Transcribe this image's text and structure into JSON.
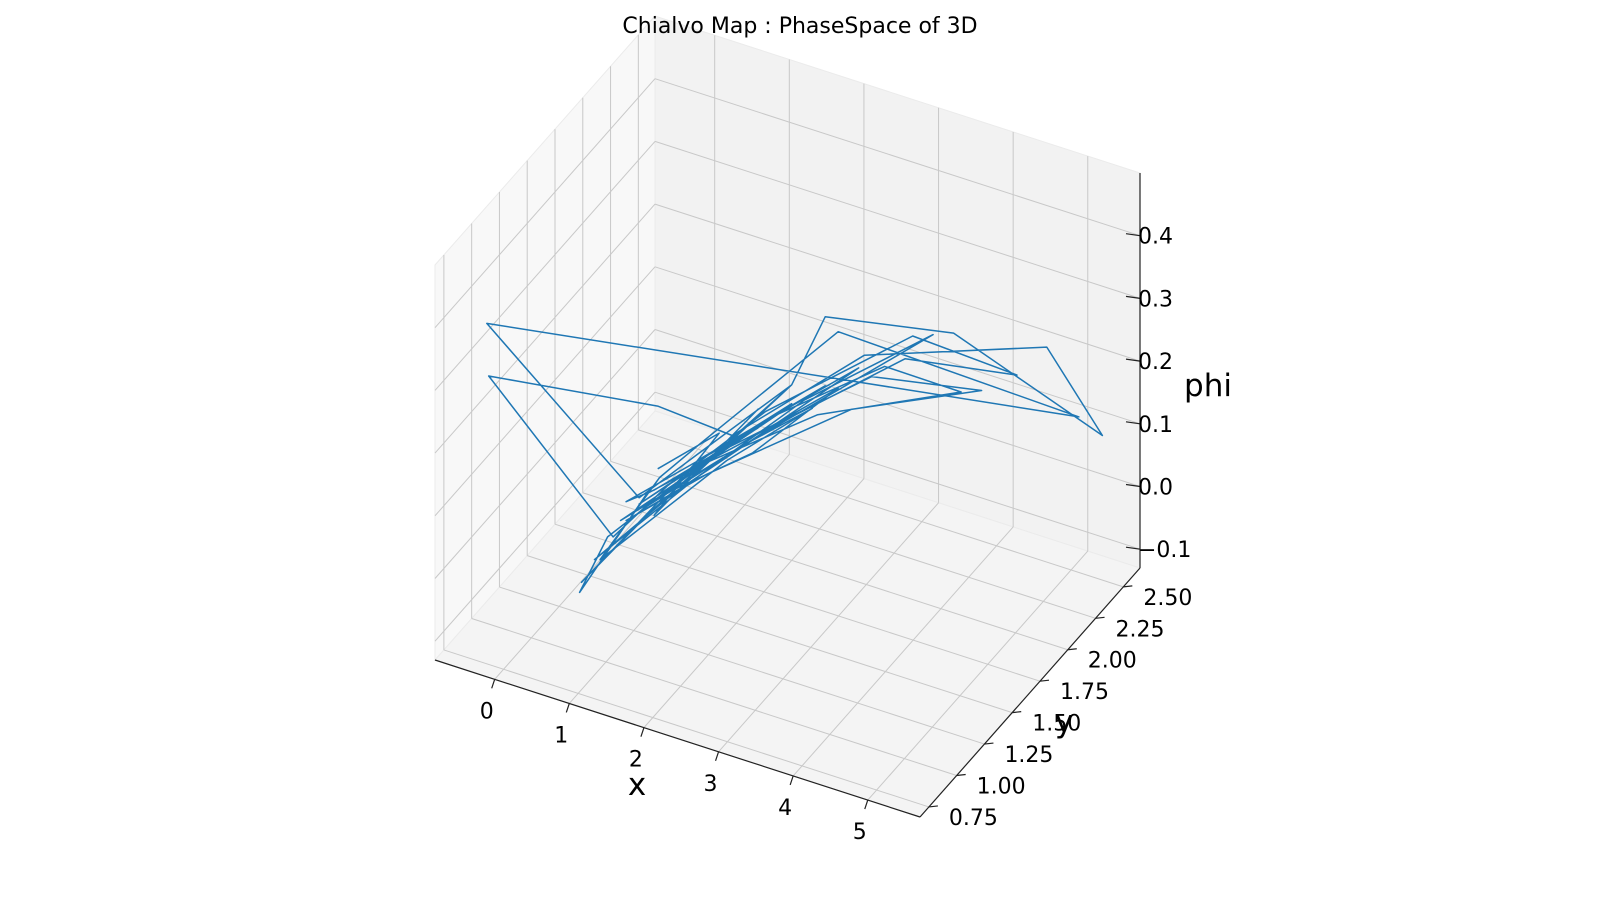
{
  "chart_data": {
    "type": "line",
    "projection": "3d",
    "title": "Chialvo Map : PhaseSpace of 3D",
    "xlabel": "x",
    "ylabel": "y",
    "zlabel": "phi",
    "xlim": [
      -0.8,
      5.7
    ],
    "ylim": [
      0.67,
      2.65
    ],
    "zlim": [
      -0.13,
      0.5
    ],
    "x_ticks": [
      0,
      1,
      2,
      3,
      4,
      5
    ],
    "y_ticks": [
      0.75,
      1.0,
      1.25,
      1.5,
      1.75,
      2.0,
      2.25,
      2.5
    ],
    "z_ticks": [
      -0.1,
      0.0,
      0.1,
      0.2,
      0.3,
      0.4
    ],
    "x_tick_labels": [
      "0",
      "1",
      "2",
      "3",
      "4",
      "5"
    ],
    "y_tick_labels": [
      "0.75",
      "1.00",
      "1.25",
      "1.50",
      "1.75",
      "2.00",
      "2.25",
      "2.50"
    ],
    "z_tick_labels": [
      "−0.1",
      "0.0",
      "0.1",
      "0.2",
      "0.3",
      "0.4"
    ],
    "grid": true,
    "color": "#1f77b4",
    "series": [
      {
        "points": [
          [
            0.8,
            1.6,
            0.05
          ],
          [
            1.4,
            1.75,
            0.1
          ],
          [
            0.9,
            1.5,
            0.0
          ],
          [
            1.7,
            1.9,
            0.12
          ],
          [
            1.1,
            1.6,
            0.03
          ],
          [
            2.0,
            2.0,
            0.15
          ],
          [
            0.95,
            1.45,
            0.02
          ],
          [
            0.3,
            1.25,
            -0.08
          ],
          [
            1.2,
            1.7,
            0.06
          ],
          [
            2.3,
            2.1,
            0.14
          ],
          [
            1.5,
            1.8,
            0.08
          ],
          [
            0.7,
            1.5,
            0.01
          ],
          [
            1.8,
            1.95,
            0.1
          ],
          [
            2.6,
            2.2,
            0.16
          ],
          [
            1.3,
            1.65,
            0.05
          ],
          [
            0.4,
            1.3,
            -0.05
          ],
          [
            1.0,
            1.55,
            0.02
          ],
          [
            2.1,
            2.05,
            0.12
          ],
          [
            3.3,
            2.4,
            0.2
          ],
          [
            1.6,
            1.85,
            0.07
          ],
          [
            0.6,
            1.4,
            0.0
          ],
          [
            1.9,
            1.95,
            0.11
          ],
          [
            2.8,
            2.3,
            0.15
          ],
          [
            3.6,
            2.45,
            0.11
          ],
          [
            2.2,
            2.1,
            0.09
          ],
          [
            1.2,
            1.7,
            0.05
          ],
          [
            0.5,
            1.35,
            -0.02
          ],
          [
            0.2,
            1.3,
            -0.11
          ],
          [
            0.8,
            1.5,
            0.03
          ],
          [
            1.6,
            1.8,
            0.08
          ],
          [
            2.4,
            2.15,
            0.13
          ],
          [
            1.7,
            1.85,
            0.06
          ],
          [
            0.9,
            1.55,
            0.02
          ],
          [
            1.4,
            1.75,
            0.07
          ],
          [
            2.7,
            2.25,
            0.14
          ],
          [
            3.8,
            2.5,
            0.11
          ],
          [
            2.5,
            2.2,
            0.09
          ],
          [
            1.3,
            1.7,
            0.04
          ],
          [
            0.6,
            1.45,
            -0.01
          ],
          [
            1.1,
            1.6,
            0.03
          ],
          [
            1.9,
            1.9,
            0.1
          ],
          [
            3.0,
            2.35,
            0.16
          ],
          [
            4.2,
            2.55,
            0.14
          ],
          [
            3.1,
            2.35,
            0.2
          ],
          [
            1.8,
            1.9,
            0.12
          ],
          [
            1.0,
            1.55,
            0.04
          ],
          [
            0.5,
            1.4,
            -0.03
          ],
          [
            -0.2,
            0.75,
            0.33
          ],
          [
            0.8,
            1.6,
            0.15
          ],
          [
            1.5,
            1.8,
            0.09
          ],
          [
            2.6,
            2.25,
            0.17
          ],
          [
            4.6,
            2.55,
            0.2
          ],
          [
            5.3,
            2.58,
            0.08
          ],
          [
            3.5,
            2.45,
            0.2
          ],
          [
            2.3,
            2.1,
            0.25
          ],
          [
            2.0,
            2.0,
            0.15
          ],
          [
            1.2,
            1.7,
            0.07
          ],
          [
            0.7,
            1.5,
            0.02
          ],
          [
            -0.3,
            0.8,
            0.4
          ],
          [
            5.0,
            2.57,
            0.1
          ],
          [
            2.4,
            2.15,
            0.22
          ],
          [
            1.3,
            1.65,
            0.1
          ],
          [
            0.9,
            1.55,
            0.05
          ],
          [
            0.4,
            1.35,
            -0.06
          ],
          [
            1.5,
            1.75,
            0.06
          ],
          [
            2.2,
            2.05,
            0.11
          ],
          [
            1.6,
            1.85,
            0.07
          ],
          [
            0.8,
            1.5,
            0.01
          ],
          [
            1.2,
            1.65,
            0.05
          ],
          [
            2.0,
            2.0,
            0.12
          ],
          [
            1.4,
            1.8,
            0.07
          ],
          [
            0.6,
            1.45,
            0.02
          ],
          [
            0.9,
            1.5,
            0.04
          ],
          [
            1.7,
            1.9,
            0.09
          ]
        ]
      }
    ]
  }
}
